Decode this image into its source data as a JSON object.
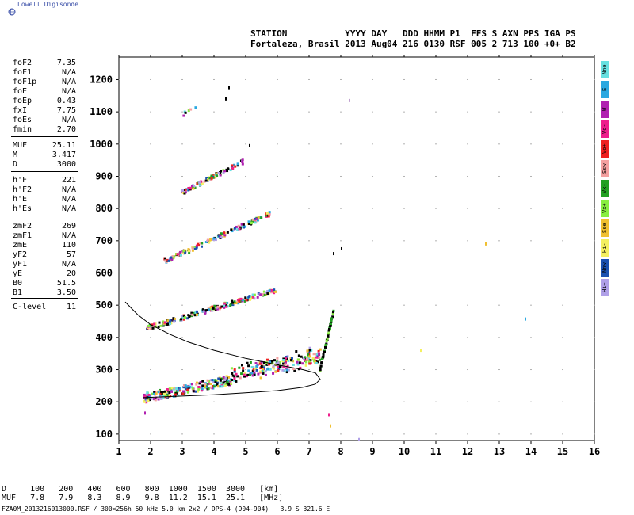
{
  "brand": "Lowell Digisonde",
  "header": {
    "line1": "STATION           YYYY DAY   DDD HHMM P1  FFS S AXN PPS IGA PS",
    "line2": "Fortaleza, Brasil 2013 Aug04 216 0130 RSF 005 2 713 100 +0+ B2"
  },
  "params": [
    {
      "k": "foF2",
      "v": "7.35"
    },
    {
      "k": "foF1",
      "v": "N/A"
    },
    {
      "k": "foF1p",
      "v": "N/A"
    },
    {
      "k": "foE",
      "v": "N/A"
    },
    {
      "k": "foEp",
      "v": "0.43"
    },
    {
      "k": "fxI",
      "v": "7.75"
    },
    {
      "k": "foEs",
      "v": "N/A"
    },
    {
      "k": "fmin",
      "v": "2.70"
    },
    {
      "k": "MUF",
      "v": "25.11"
    },
    {
      "k": "M",
      "v": "3.417"
    },
    {
      "k": "D",
      "v": "3000"
    },
    {
      "k": "h'F",
      "v": "221"
    },
    {
      "k": "h'F2",
      "v": "N/A"
    },
    {
      "k": "h'E",
      "v": "N/A"
    },
    {
      "k": "h'Es",
      "v": "N/A"
    },
    {
      "k": "zmF2",
      "v": "269"
    },
    {
      "k": "zmF1",
      "v": "N/A"
    },
    {
      "k": "zmE",
      "v": "110"
    },
    {
      "k": "yF2",
      "v": "57"
    },
    {
      "k": "yF1",
      "v": "N/A"
    },
    {
      "k": "yE",
      "v": "20"
    },
    {
      "k": "B0",
      "v": "51.5"
    },
    {
      "k": "B1",
      "v": "3.50"
    },
    {
      "k": "C-level",
      "v": "11"
    }
  ],
  "legend": [
    {
      "label": "Nne",
      "color": "#66e0e0"
    },
    {
      "label": "E",
      "color": "#2aa8e0"
    },
    {
      "label": "W",
      "color": "#b020b0"
    },
    {
      "label": "Vo-",
      "color": "#ee1e8c"
    },
    {
      "label": "Vo+",
      "color": "#ee2020"
    },
    {
      "label": "Ssw",
      "color": "#f4a0a0"
    },
    {
      "label": "Vx-",
      "color": "#22a022"
    },
    {
      "label": "Vx+",
      "color": "#88ee40"
    },
    {
      "label": "Sse",
      "color": "#f0c030"
    },
    {
      "label": "Hi-",
      "color": "#f4f060"
    },
    {
      "label": "Nnw",
      "color": "#1a50b0"
    },
    {
      "label": "Hi+",
      "color": "#b0a0e8"
    }
  ],
  "muf_table": {
    "row1": "D     100   200   400   600   800  1000  1500  3000   [km]",
    "row2": "MUF   7.8   7.9   8.3   8.9   9.8  11.2  15.1  25.1   [MHz]"
  },
  "footer": "FZA0M_2013216013000.RSF / 300×256h 50 kHz 5.0 km 2x2 / DPS-4 (904-904)   3.9 S 321.6 E",
  "chart_data": {
    "type": "scatter",
    "x_range": [
      1,
      16
    ],
    "y_range": [
      80,
      1270
    ],
    "x_ticks": [
      1,
      2,
      3,
      4,
      5,
      6,
      7,
      8,
      9,
      10,
      11,
      12,
      13,
      14,
      15,
      16
    ],
    "y_ticks": [
      100,
      200,
      300,
      400,
      500,
      600,
      700,
      800,
      900,
      1000,
      1100,
      1200
    ],
    "traces": [
      {
        "name": "F2-1hop",
        "x_start": 1.75,
        "y_start": 215,
        "x_end": 7.35,
        "y_end": 330
      },
      {
        "name": "F2-2hop",
        "x_start": 1.85,
        "y_start": 432,
        "x_end": 5.9,
        "y_end": 550
      },
      {
        "name": "F2-3hop",
        "x_start": 2.4,
        "y_start": 640,
        "x_end": 5.8,
        "y_end": 790
      },
      {
        "name": "F2-4hop",
        "x_start": 2.9,
        "y_start": 850,
        "x_end": 4.9,
        "y_end": 950
      },
      {
        "name": "F2-5hop",
        "x_start": 3.0,
        "y_start": 1095,
        "x_end": 3.4,
        "y_end": 1120
      }
    ],
    "profile_curve": {
      "upper": [
        [
          1.2,
          510
        ],
        [
          1.6,
          470
        ],
        [
          2.0,
          440
        ],
        [
          2.6,
          410
        ],
        [
          3.2,
          385
        ],
        [
          4.0,
          360
        ],
        [
          5.0,
          335
        ],
        [
          6.0,
          315
        ],
        [
          6.8,
          300
        ],
        [
          7.2,
          290
        ]
      ],
      "lower": [
        [
          7.2,
          290
        ],
        [
          7.35,
          270
        ],
        [
          7.2,
          255
        ],
        [
          6.8,
          245
        ],
        [
          6.0,
          235
        ],
        [
          5.0,
          228
        ],
        [
          4.0,
          222
        ],
        [
          3.0,
          218
        ],
        [
          2.0,
          214
        ],
        [
          1.75,
          213
        ]
      ]
    },
    "extra_points": [
      {
        "x": 8.25,
        "y": 1140,
        "color": "#c0a0d0"
      },
      {
        "x": 10.5,
        "y": 365,
        "color": "#f4f060"
      },
      {
        "x": 13.8,
        "y": 462,
        "color": "#2aa8e0"
      },
      {
        "x": 12.55,
        "y": 695,
        "color": "#f0c030"
      },
      {
        "x": 8.55,
        "y": 88,
        "color": "#b0a0e8"
      },
      {
        "x": 1.8,
        "y": 170,
        "color": "#b020b0"
      },
      {
        "x": 4.45,
        "y": 1180,
        "color": "#000000"
      },
      {
        "x": 4.35,
        "y": 1145,
        "color": "#000000"
      },
      {
        "x": 5.1,
        "y": 1000,
        "color": "#000000"
      },
      {
        "x": 7.6,
        "y": 165,
        "color": "#ee1e8c"
      },
      {
        "x": 7.65,
        "y": 130,
        "color": "#f0c030"
      },
      {
        "x": 8.0,
        "y": 680,
        "color": "#000000"
      },
      {
        "x": 7.75,
        "y": 665,
        "color": "#000000"
      }
    ]
  }
}
